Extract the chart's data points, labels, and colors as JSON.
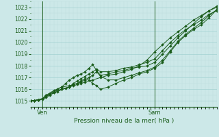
{
  "xlabel": "Pression niveau de la mer( hPa )",
  "bg_color": "#cce8e8",
  "plot_bg_color": "#cce8e8",
  "grid_color_major": "#99cccc",
  "grid_color_minor": "#bbdddd",
  "line_color": "#1a5c1a",
  "marker": "D",
  "marker_size": 2.0,
  "linewidth": 0.7,
  "ylim": [
    1014.5,
    1023.5
  ],
  "xlim": [
    0,
    48
  ],
  "ven_x": 3,
  "sam_x": 32,
  "yticks": [
    1015,
    1016,
    1017,
    1018,
    1019,
    1020,
    1021,
    1022,
    1023
  ],
  "xtick_positions": [
    3,
    32
  ],
  "xtick_labels": [
    "Ven",
    "Sam"
  ],
  "lines": [
    {
      "x": [
        0,
        1,
        2,
        3,
        4,
        5,
        6,
        7,
        8,
        9,
        10,
        11,
        12,
        13,
        14,
        16,
        18,
        20,
        22,
        24,
        26,
        28,
        30,
        32,
        34,
        36,
        38,
        40,
        42,
        44,
        46,
        48
      ],
      "y": [
        1015.0,
        1015.05,
        1015.1,
        1015.15,
        1015.3,
        1015.5,
        1015.7,
        1015.8,
        1016.0,
        1016.1,
        1016.2,
        1016.3,
        1016.4,
        1016.5,
        1016.6,
        1016.8,
        1017.0,
        1017.2,
        1017.3,
        1017.5,
        1017.7,
        1018.0,
        1018.5,
        1019.2,
        1019.8,
        1020.4,
        1020.9,
        1021.4,
        1021.9,
        1022.3,
        1022.7,
        1023.1
      ]
    },
    {
      "x": [
        0,
        1,
        2,
        3,
        4,
        5,
        6,
        7,
        8,
        9,
        10,
        11,
        12,
        13,
        14,
        15,
        16,
        17,
        18,
        20,
        22,
        24,
        26,
        28,
        30,
        32,
        34,
        36,
        38,
        40,
        42,
        44,
        46,
        48
      ],
      "y": [
        1015.0,
        1015.05,
        1015.1,
        1015.2,
        1015.4,
        1015.6,
        1015.8,
        1016.0,
        1016.2,
        1016.5,
        1016.8,
        1017.0,
        1017.2,
        1017.3,
        1017.5,
        1017.8,
        1018.1,
        1017.6,
        1017.2,
        1017.3,
        1017.5,
        1017.6,
        1017.8,
        1017.9,
        1018.0,
        1018.3,
        1019.0,
        1019.7,
        1020.4,
        1021.0,
        1021.6,
        1022.2,
        1022.7,
        1023.0
      ]
    },
    {
      "x": [
        0,
        1,
        2,
        3,
        4,
        6,
        8,
        10,
        11,
        12,
        13,
        14,
        15,
        16,
        17,
        18,
        20,
        22,
        24,
        26,
        28,
        30,
        32,
        34,
        36,
        38,
        40,
        42,
        44,
        46,
        48
      ],
      "y": [
        1015.0,
        1015.05,
        1015.1,
        1015.2,
        1015.5,
        1015.8,
        1016.0,
        1016.2,
        1016.4,
        1016.5,
        1016.6,
        1016.8,
        1017.0,
        1017.2,
        1017.5,
        1017.1,
        1016.8,
        1016.8,
        1017.0,
        1017.2,
        1017.4,
        1017.6,
        1017.9,
        1018.5,
        1019.3,
        1020.1,
        1020.7,
        1021.2,
        1021.7,
        1022.3,
        1022.8
      ]
    },
    {
      "x": [
        0,
        1,
        2,
        3,
        4,
        6,
        8,
        10,
        12,
        13,
        14,
        15,
        16,
        17,
        18,
        20,
        22,
        24,
        26,
        28,
        30,
        32,
        34,
        36,
        38,
        40,
        42,
        44,
        46,
        48
      ],
      "y": [
        1015.0,
        1015.05,
        1015.1,
        1015.2,
        1015.5,
        1015.9,
        1016.2,
        1016.3,
        1016.5,
        1016.7,
        1016.9,
        1016.8,
        1016.5,
        1016.3,
        1016.0,
        1016.2,
        1016.5,
        1016.8,
        1017.0,
        1017.3,
        1017.5,
        1017.8,
        1018.3,
        1019.2,
        1020.0,
        1020.6,
        1021.1,
        1021.5,
        1022.1,
        1022.8
      ]
    },
    {
      "x": [
        0,
        1,
        2,
        3,
        4,
        6,
        8,
        10,
        11,
        12,
        13,
        14,
        15,
        16,
        17,
        18,
        20,
        22,
        24,
        26,
        28,
        30,
        32,
        34,
        36,
        38,
        40,
        42,
        44,
        46,
        48
      ],
      "y": [
        1015.0,
        1015.05,
        1015.1,
        1015.2,
        1015.4,
        1015.7,
        1016.0,
        1016.2,
        1016.5,
        1016.7,
        1016.9,
        1017.1,
        1017.3,
        1017.5,
        1017.7,
        1017.5,
        1017.5,
        1017.6,
        1017.8,
        1017.9,
        1018.1,
        1018.3,
        1018.6,
        1019.3,
        1020.0,
        1020.6,
        1021.1,
        1021.5,
        1021.9,
        1022.4,
        1022.7
      ]
    }
  ]
}
